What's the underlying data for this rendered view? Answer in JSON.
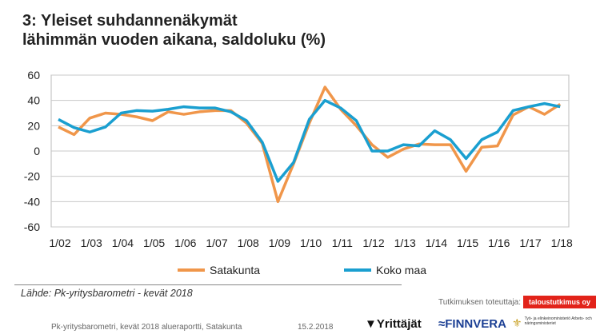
{
  "title_line1": "3: Yleiset suhdannenäkymät",
  "title_line2": "lähimmän vuoden aikana, saldoluku (%)",
  "chart_data": {
    "type": "line",
    "title": "3: Yleiset suhdannenäkymät lähimmän vuoden aikana, saldoluku (%)",
    "ylim": [
      -60,
      60
    ],
    "yticks": [
      60,
      40,
      20,
      0,
      -20,
      -40,
      -60
    ],
    "xtick_labels": [
      "1/02",
      "1/03",
      "1/04",
      "1/05",
      "1/06",
      "1/07",
      "1/08",
      "1/09",
      "1/10",
      "1/11",
      "1/12",
      "1/13",
      "1/14",
      "1/15",
      "1/16",
      "1/17",
      "1/18"
    ],
    "grid": true,
    "legend": "bottom",
    "series": [
      {
        "name": "Satakunta",
        "color": "#f0964a",
        "values": [
          19,
          13,
          26,
          30,
          29,
          27,
          24,
          31,
          29,
          31,
          32,
          32,
          22,
          6,
          -40,
          -10,
          22,
          50.5,
          33,
          20,
          5,
          -5,
          1.5,
          5.5,
          5,
          5,
          -16,
          3,
          4,
          28.5,
          35,
          29,
          37
        ]
      },
      {
        "name": "Koko maa",
        "color": "#1a9fd0",
        "values": [
          25,
          18.5,
          15,
          19,
          30,
          32,
          31.5,
          33,
          35,
          34,
          34,
          31,
          24,
          7,
          -24,
          -9,
          25,
          40,
          34,
          24,
          0,
          0,
          5,
          4,
          16,
          9,
          -6,
          9,
          15,
          32,
          35,
          37.5,
          35
        ]
      }
    ]
  },
  "source": "Lähde: Pk-yritysbarometri - kevät 2018",
  "byline": "Tutkimuksen toteuttaja:",
  "badge": "taloustutkimus oy",
  "footer_report": "Pk-yritysbarometri, kevät 2018 alueraportti, Satakunta",
  "footer_date": "15.2.2018",
  "logos": {
    "yrittajat": "Yrittäjät",
    "finnvera": "FINNVERA",
    "ministry": "Työ- ja elinkeinoministeriö Arbets- och näringsministeriet"
  }
}
